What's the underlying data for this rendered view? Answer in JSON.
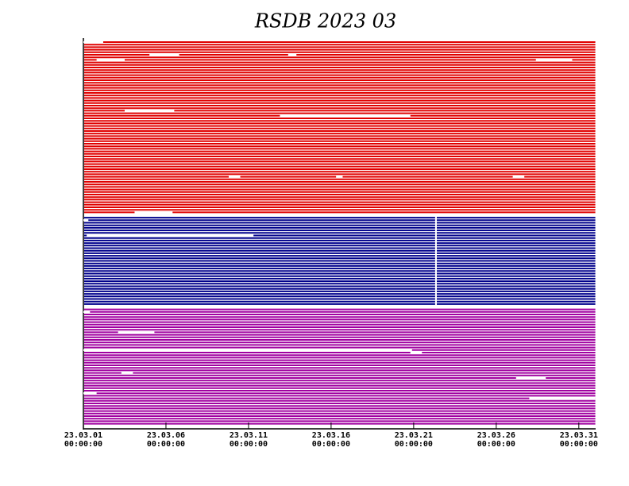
{
  "chart_data": {
    "type": "availability",
    "title": "RSDB  2023  03",
    "xlim": [
      1,
      32
    ],
    "xticks": [
      {
        "value": 1,
        "label": "23.03.01\n00:00:00"
      },
      {
        "value": 6,
        "label": "23.03.06\n00:00:00"
      },
      {
        "value": 11,
        "label": "23.03.11\n00:00:00"
      },
      {
        "value": 16,
        "label": "23.03.16\n00:00:00"
      },
      {
        "value": 21,
        "label": "23.03.21\n00:00:00"
      },
      {
        "value": 26,
        "label": "23.03.26\n00:00:00"
      },
      {
        "value": 31,
        "label": "23.03.31\n00:00:00"
      }
    ],
    "groups": [
      {
        "color": "#e00000",
        "rows": 68,
        "gaps": [
          [
            0,
            1,
            2.2
          ],
          [
            5,
            5.0,
            6.8
          ],
          [
            5,
            13.4,
            13.9
          ],
          [
            7,
            1.8,
            3.5
          ],
          [
            7,
            28.4,
            30.6
          ],
          [
            27,
            3.5,
            6.5
          ],
          [
            29,
            12.9,
            20.8
          ],
          [
            53,
            9.8,
            10.5
          ],
          [
            53,
            16.3,
            16.7
          ],
          [
            53,
            27.0,
            27.7
          ],
          [
            67,
            4.1,
            6.4
          ]
        ],
        "column_gaps": []
      },
      {
        "color": "#00008b",
        "rows": 35,
        "gaps": [
          [
            7,
            1.2,
            11.3
          ],
          [
            1,
            1.0,
            1.3
          ]
        ],
        "column_gaps": [
          [
            22.3,
            22.4
          ]
        ]
      },
      {
        "color": "#a000a0",
        "rows": 46,
        "gaps": [
          [
            1,
            1.0,
            1.4
          ],
          [
            9,
            3.1,
            5.3
          ],
          [
            16,
            1.0,
            20.9
          ],
          [
            17,
            20.8,
            21.5
          ],
          [
            25,
            3.3,
            4.0
          ],
          [
            27,
            27.2,
            29.0
          ],
          [
            33,
            1.0,
            1.8
          ],
          [
            35,
            28.0,
            32.0
          ]
        ],
        "column_gaps": []
      }
    ]
  }
}
